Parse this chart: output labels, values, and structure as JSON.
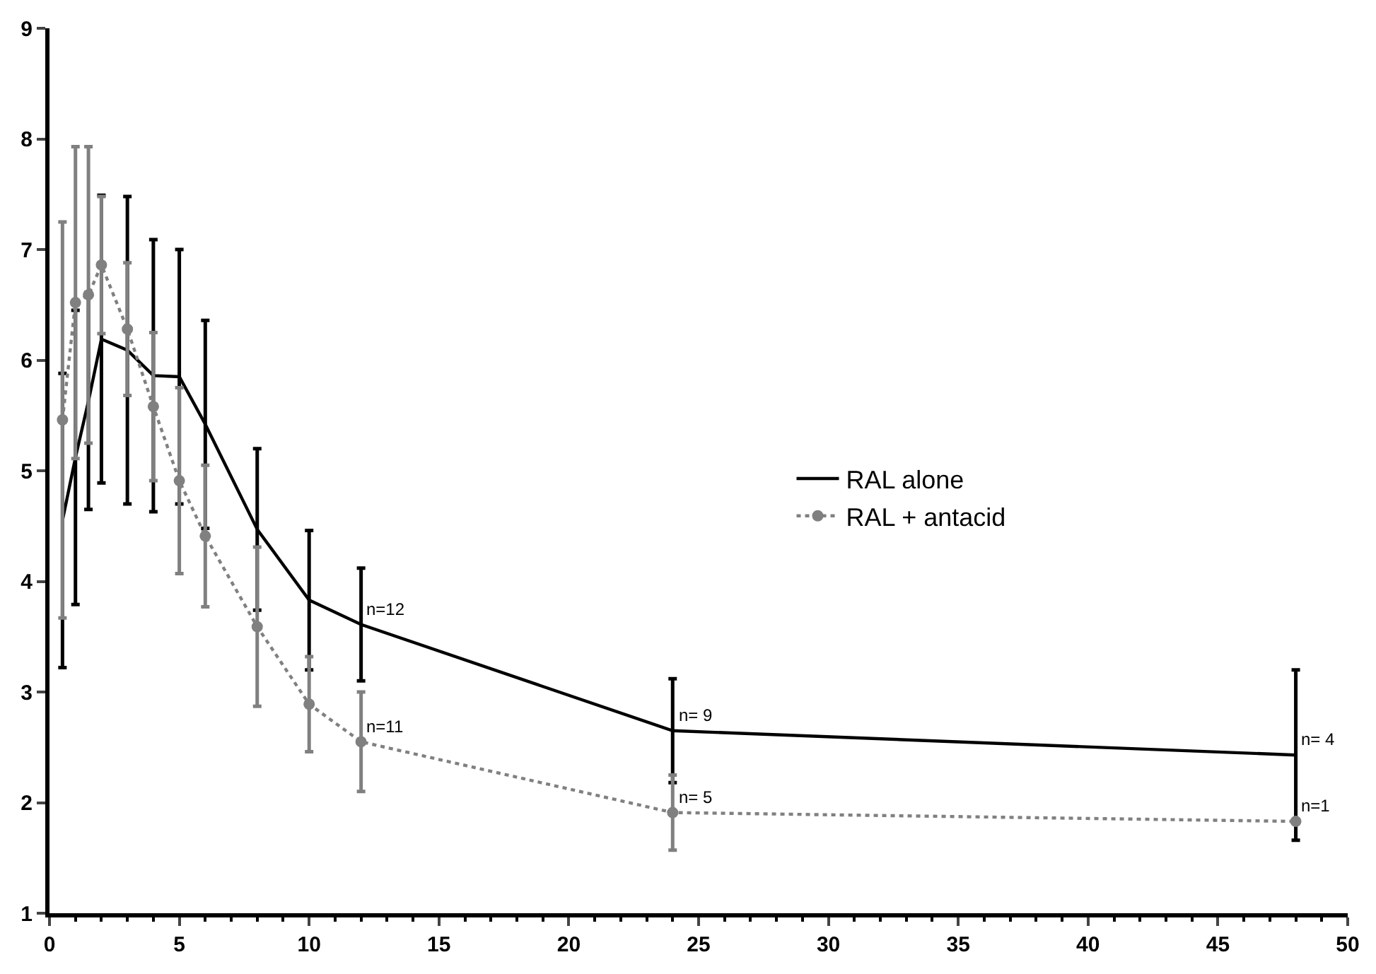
{
  "chart_data": {
    "type": "line",
    "xlim": [
      0,
      50
    ],
    "xticks": [
      0,
      5,
      10,
      15,
      20,
      25,
      30,
      35,
      40,
      45,
      50
    ],
    "ylim": [
      1,
      9
    ],
    "yticks": [
      1,
      2,
      3,
      4,
      5,
      6,
      7,
      8,
      9
    ],
    "legend": "right",
    "series": [
      {
        "name": "RAL alone",
        "color": "#000000",
        "marker": "none",
        "line_style": "solid",
        "x": [
          0.5,
          1,
          1.5,
          2,
          3,
          4,
          5,
          6,
          8,
          10,
          12,
          24,
          48
        ],
        "values": [
          4.55,
          5.12,
          5.63,
          6.19,
          6.09,
          5.86,
          5.85,
          5.42,
          4.47,
          3.83,
          3.61,
          2.65,
          2.43
        ],
        "errors": [
          1.33,
          1.33,
          0.98,
          1.3,
          1.39,
          1.23,
          1.15,
          0.94,
          0.73,
          0.63,
          0.51,
          0.47,
          0.77
        ]
      },
      {
        "name": "RAL + antacid",
        "color": "#808080",
        "marker": "circle",
        "line_style": "dotted",
        "x": [
          0.5,
          1,
          1.5,
          2,
          3,
          4,
          5,
          6,
          8,
          10,
          12,
          24,
          48
        ],
        "values": [
          5.46,
          6.52,
          6.59,
          6.86,
          6.28,
          5.58,
          4.91,
          4.41,
          3.59,
          2.89,
          2.55,
          1.91,
          1.83
        ],
        "errors": [
          1.79,
          1.41,
          1.34,
          0.62,
          0.6,
          0.67,
          0.84,
          0.64,
          0.72,
          0.43,
          0.45,
          0.34,
          null
        ]
      }
    ],
    "annotations": [
      {
        "text": "n=12",
        "x": 12,
        "y": 3.61
      },
      {
        "text": "n=11",
        "x": 12,
        "y": 2.55
      },
      {
        "text": "n= 9",
        "x": 24,
        "y": 2.65
      },
      {
        "text": "n= 5",
        "x": 24,
        "y": 1.91
      },
      {
        "text": "n= 4",
        "x": 48,
        "y": 2.43
      },
      {
        "text": "n=1",
        "x": 48,
        "y": 1.83
      }
    ]
  }
}
